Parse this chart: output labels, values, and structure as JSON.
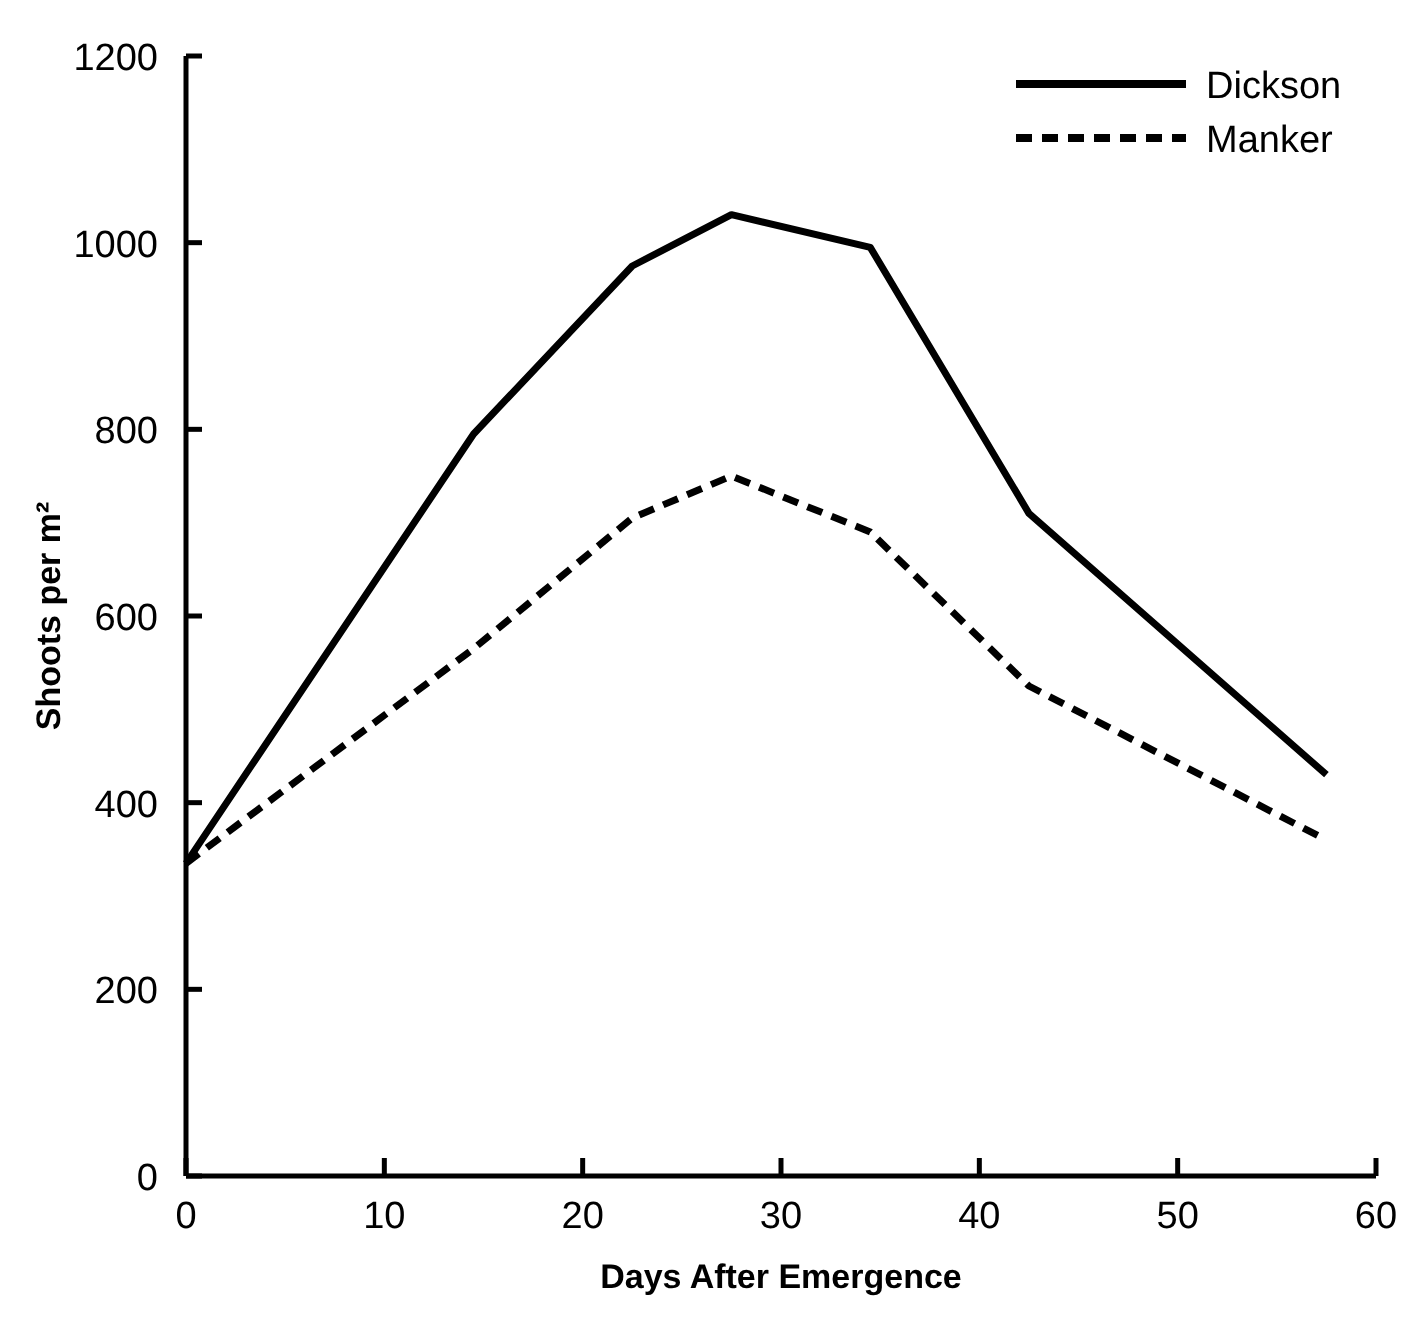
{
  "chart_data": {
    "type": "line",
    "xlabel": "Days After Emergence",
    "ylabel": "Shoots per m²",
    "x": [
      0,
      14.5,
      22.5,
      27.5,
      34.5,
      42.5,
      57.5
    ],
    "series": [
      {
        "name": "Dickson",
        "color": "#000000",
        "line_style": "solid",
        "values": [
          335,
          795,
          975,
          1030,
          995,
          710,
          430
        ]
      },
      {
        "name": "Manker",
        "color": "#000000",
        "line_style": "dashed",
        "values": [
          335,
          565,
          705,
          750,
          690,
          525,
          360
        ]
      }
    ],
    "xlim": [
      0,
      60
    ],
    "xticks": [
      0,
      10,
      20,
      30,
      40,
      50,
      60
    ],
    "ylim": [
      0,
      1200
    ],
    "yticks": [
      0,
      200,
      400,
      600,
      800,
      1000,
      1200
    ],
    "grid": false,
    "legend": "top right",
    "marker": "none"
  }
}
